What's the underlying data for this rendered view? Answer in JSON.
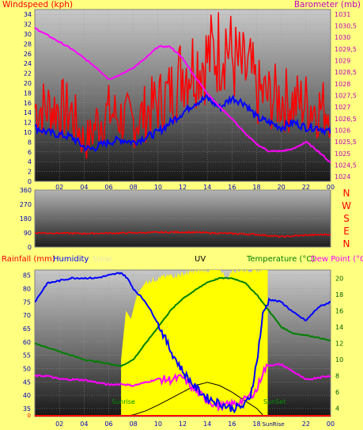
{
  "colors": {
    "bg": "#ffff80",
    "wind": "#ff0000",
    "wind_avg": "#0000ff",
    "baro": "#ff00ff",
    "dir": "#ff0000",
    "hum": "#0000ff",
    "temp": "#008000",
    "dew": "#ff00ff",
    "uv": "#000000",
    "solar": "#ffff00",
    "axis_left": "#0000c0",
    "axis_right": "#c000c0"
  },
  "chart_data": [
    {
      "id": "wind-baro",
      "type": "line",
      "title": "",
      "left_label": "Windspeed (kph)",
      "right_label": "Barometer (mb)",
      "x_ticks": [
        "02",
        "04",
        "06",
        "08",
        "10",
        "12",
        "14",
        "16",
        "18",
        "20",
        "22",
        "00"
      ],
      "x_range": [
        0,
        24
      ],
      "y_left": {
        "range": [
          0,
          35
        ],
        "ticks": [
          0,
          2,
          4,
          6,
          8,
          10,
          12,
          14,
          16,
          18,
          20,
          22,
          24,
          26,
          28,
          30,
          32,
          34
        ]
      },
      "y_right": {
        "range": [
          1023.8,
          1031.2
        ],
        "ticks": [
          1024,
          1024.5,
          1025,
          1025.5,
          1026,
          1026.5,
          1027,
          1027.5,
          1028,
          1028.5,
          1029,
          1029.5,
          1030,
          1030.5,
          1031
        ]
      },
      "series": [
        {
          "key": "gust",
          "axis": "left",
          "x": [
            0,
            2,
            3,
            4,
            4.5,
            5,
            6,
            7,
            8,
            9,
            10,
            11,
            11.5,
            12,
            13,
            14,
            15,
            15.5,
            16,
            17,
            17.5,
            18,
            19,
            20,
            21,
            22,
            23,
            24
          ],
          "values": [
            15,
            15,
            14,
            8,
            9,
            12,
            14,
            13,
            12,
            14,
            16,
            18,
            20,
            23,
            24,
            25,
            27,
            29,
            25,
            22,
            22,
            18,
            17,
            17,
            16,
            16,
            15,
            15
          ]
        },
        {
          "key": "avg",
          "axis": "left",
          "x": [
            0,
            1,
            2,
            3,
            4,
            4.5,
            5,
            6,
            7,
            8,
            9,
            10,
            11,
            12,
            13,
            14,
            15,
            16,
            17,
            18,
            19,
            20,
            21,
            22,
            23,
            24
          ],
          "values": [
            11,
            10,
            9.5,
            9,
            7,
            6.5,
            7,
            8,
            8.5,
            8,
            9,
            10,
            12,
            14,
            16,
            17,
            15,
            17,
            16,
            13,
            12,
            11,
            12,
            11,
            11,
            10
          ]
        },
        {
          "key": "pressure",
          "axis": "right",
          "x": [
            0,
            1,
            2,
            3,
            4,
            5,
            6,
            7,
            8,
            9,
            10,
            11,
            12,
            13,
            14,
            15,
            16,
            17,
            18,
            19,
            20,
            21,
            22,
            23,
            24
          ],
          "values": [
            1030.4,
            1030.1,
            1029.8,
            1029.5,
            1029.1,
            1028.7,
            1028.2,
            1028.4,
            1028.7,
            1029.1,
            1029.6,
            1029.6,
            1029.1,
            1028.3,
            1027.6,
            1027,
            1026.5,
            1025.9,
            1025.4,
            1025.1,
            1025.1,
            1025.2,
            1025.5,
            1025.1,
            1024.6
          ]
        }
      ]
    },
    {
      "id": "wind-dir",
      "type": "line",
      "title": "",
      "y_ticks": [
        0,
        90,
        180,
        270,
        360
      ],
      "y_range": [
        0,
        360
      ],
      "compass": [
        "N",
        "W",
        "S",
        "E",
        "N"
      ],
      "series": [
        {
          "key": "direction",
          "x": [
            0,
            4,
            8,
            12,
            16,
            18,
            20,
            22,
            24
          ],
          "values": [
            90,
            85,
            90,
            95,
            85,
            80,
            65,
            75,
            80
          ]
        }
      ]
    },
    {
      "id": "temp-hum",
      "type": "line",
      "title": "",
      "labels": {
        "rain": "Rainfall (mm)",
        "humidity": "Humidity",
        "solar": "Solar",
        "uv": "UV",
        "temp": "Temperature (°C)",
        "dew": "Dew Point (°C)"
      },
      "x_ticks": [
        "02",
        "04",
        "06",
        "08",
        "10",
        "12",
        "14",
        "16",
        "18",
        "00"
      ],
      "extra_ticks": [
        "22",
        "Sun",
        "Rise",
        "Sunrise",
        "SunSet"
      ],
      "x_range": [
        0,
        24
      ],
      "y_left": {
        "range": [
          0,
          5
        ],
        "ticks": [
          0
        ]
      },
      "y_hum": {
        "range": [
          32,
          87
        ],
        "ticks": [
          35,
          40,
          45,
          50,
          55,
          60,
          65,
          70,
          75,
          80,
          85
        ]
      },
      "y_temp": {
        "range": [
          3,
          21
        ],
        "ticks": [
          4,
          6,
          8,
          10,
          12,
          14,
          16,
          18,
          20
        ]
      },
      "sunrise_hour": 7.1,
      "sunset_hour": 18.9,
      "series": [
        {
          "key": "humidity",
          "axis": "hum",
          "x": [
            0,
            1,
            2,
            3,
            4,
            5,
            6,
            7,
            7.5,
            8,
            9,
            10,
            11,
            12,
            13,
            14,
            15,
            16,
            17,
            17.5,
            18,
            18.5,
            19,
            20,
            21,
            22,
            23,
            24
          ],
          "values": [
            75,
            82,
            83,
            84,
            84,
            84,
            85,
            86,
            84,
            80,
            75,
            67,
            57,
            49,
            43,
            39,
            37,
            35,
            36,
            40,
            52,
            70,
            76,
            75,
            71,
            68,
            73,
            75
          ]
        },
        {
          "key": "temperature",
          "axis": "temp",
          "x": [
            0,
            2,
            4,
            6,
            7,
            8,
            9,
            10,
            11,
            12,
            13,
            14,
            15,
            16,
            17,
            18,
            19,
            20,
            21,
            22,
            23,
            24
          ],
          "values": [
            12,
            11,
            10,
            9.5,
            9.2,
            10,
            12,
            14,
            16,
            17.5,
            18.5,
            19.5,
            20,
            20,
            19.5,
            18,
            16,
            14,
            13.2,
            13,
            12.7,
            12.3
          ]
        },
        {
          "key": "dew_point",
          "axis": "temp",
          "x": [
            0,
            1,
            2,
            4,
            6,
            7,
            8,
            9,
            10,
            11,
            12,
            13,
            14,
            15,
            16,
            17,
            18,
            18.5,
            19,
            20,
            21,
            22,
            23,
            24
          ],
          "values": [
            8,
            8,
            7.6,
            7.5,
            6.9,
            7,
            6.8,
            7.2,
            7.6,
            7.5,
            7.8,
            6.2,
            5,
            4.2,
            4.5,
            5,
            6.2,
            8.5,
            9.3,
            9.4,
            8.5,
            7.5,
            7.8,
            8
          ]
        },
        {
          "key": "uv",
          "axis": "temp",
          "x": [
            7,
            8,
            9,
            10,
            11,
            12,
            13,
            14,
            15,
            16,
            17,
            18,
            18.5
          ],
          "values": [
            3,
            3.2,
            3.7,
            4.4,
            5.2,
            6,
            6.8,
            7.2,
            6.8,
            6,
            5,
            4,
            3.2
          ]
        },
        {
          "key": "solar",
          "axis": "temp",
          "x": [
            7,
            7.4,
            7.8,
            8.3,
            9,
            10,
            11,
            12,
            13,
            14,
            15,
            15.6,
            16,
            17,
            18,
            18.9
          ],
          "values": [
            10,
            16,
            15,
            18,
            19.5,
            20,
            20.3,
            20.5,
            20.8,
            21,
            21.2,
            19.8,
            21,
            21,
            21,
            21
          ]
        }
      ]
    }
  ]
}
